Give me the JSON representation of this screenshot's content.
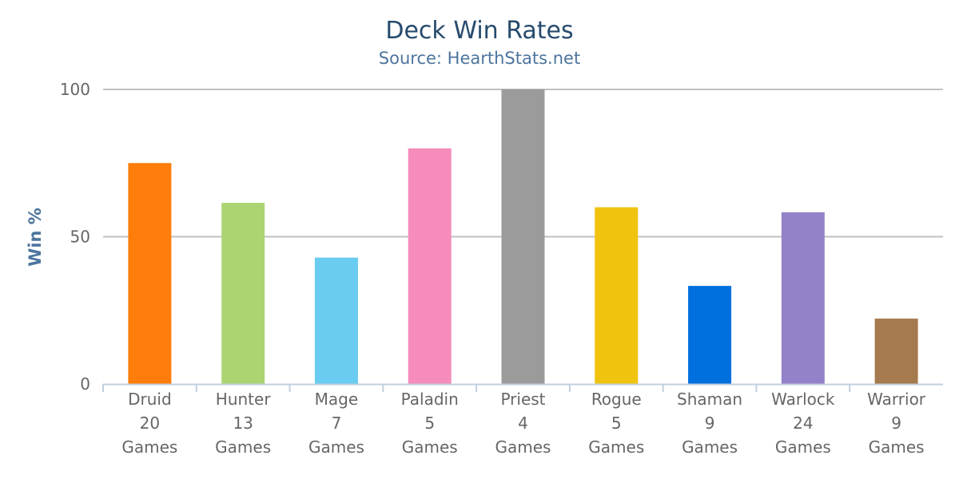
{
  "chart_data": {
    "type": "bar",
    "title": "Deck Win Rates",
    "subtitle": "Source: HearthStats.net",
    "xlabel": "",
    "ylabel": "Win %",
    "ylim": [
      0,
      100
    ],
    "yticks": [
      0,
      50,
      100
    ],
    "grid": true,
    "legend": "none",
    "categories": [
      [
        "Druid",
        "20",
        "Games"
      ],
      [
        "Hunter",
        "13",
        "Games"
      ],
      [
        "Mage",
        "7",
        "Games"
      ],
      [
        "Paladin",
        "5",
        "Games"
      ],
      [
        "Priest",
        "4",
        "Games"
      ],
      [
        "Rogue",
        "5",
        "Games"
      ],
      [
        "Shaman",
        "9",
        "Games"
      ],
      [
        "Warlock",
        "24",
        "Games"
      ],
      [
        "Warrior",
        "9",
        "Games"
      ]
    ],
    "values": [
      75,
      61.5,
      42.9,
      80,
      100,
      60,
      33.3,
      58.3,
      22.2
    ],
    "colors": [
      "#ff7d0a",
      "#abd473",
      "#69ccf0",
      "#f58cba",
      "#9b9b9b",
      "#f0c30f",
      "#0070de",
      "#9482c9",
      "#a57a4e"
    ]
  }
}
